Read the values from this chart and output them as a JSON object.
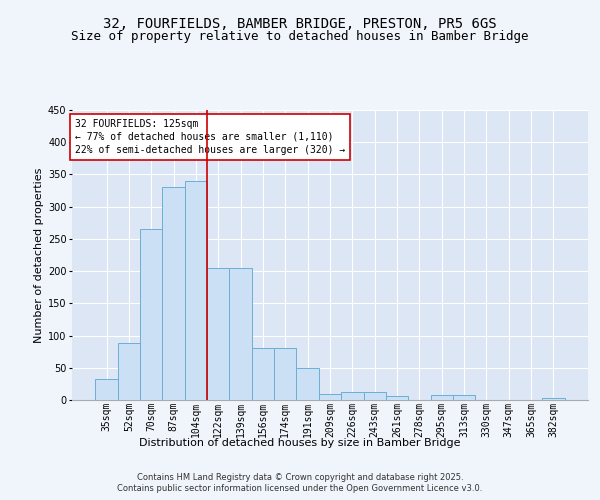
{
  "title1": "32, FOURFIELDS, BAMBER BRIDGE, PRESTON, PR5 6GS",
  "title2": "Size of property relative to detached houses in Bamber Bridge",
  "xlabel": "Distribution of detached houses by size in Bamber Bridge",
  "ylabel": "Number of detached properties",
  "categories": [
    "35sqm",
    "52sqm",
    "70sqm",
    "87sqm",
    "104sqm",
    "122sqm",
    "139sqm",
    "156sqm",
    "174sqm",
    "191sqm",
    "209sqm",
    "226sqm",
    "243sqm",
    "261sqm",
    "278sqm",
    "295sqm",
    "313sqm",
    "330sqm",
    "347sqm",
    "365sqm",
    "382sqm"
  ],
  "values": [
    32,
    88,
    265,
    330,
    340,
    205,
    205,
    80,
    80,
    50,
    10,
    12,
    12,
    6,
    0,
    8,
    8,
    0,
    0,
    0,
    3
  ],
  "bar_color": "#cce0f5",
  "bar_edge_color": "#6baed6",
  "vline_x": 4.5,
  "vline_color": "#cc0000",
  "annotation_title": "32 FOURFIELDS: 125sqm",
  "annotation_line1": "← 77% of detached houses are smaller (1,110)",
  "annotation_line2": "22% of semi-detached houses are larger (320) →",
  "annotation_box_color": "#ffffff",
  "annotation_box_edge_color": "#cc0000",
  "footer1": "Contains HM Land Registry data © Crown copyright and database right 2025.",
  "footer2": "Contains public sector information licensed under the Open Government Licence v3.0.",
  "ylim": [
    0,
    450
  ],
  "yticks": [
    0,
    50,
    100,
    150,
    200,
    250,
    300,
    350,
    400,
    450
  ],
  "background_color": "#dce6f5",
  "grid_color": "#ffffff",
  "fig_bg_color": "#f0f4fb",
  "title1_fontsize": 10,
  "title2_fontsize": 9,
  "tick_fontsize": 7,
  "label_fontsize": 8,
  "footer_fontsize": 6,
  "annot_fontsize": 7
}
